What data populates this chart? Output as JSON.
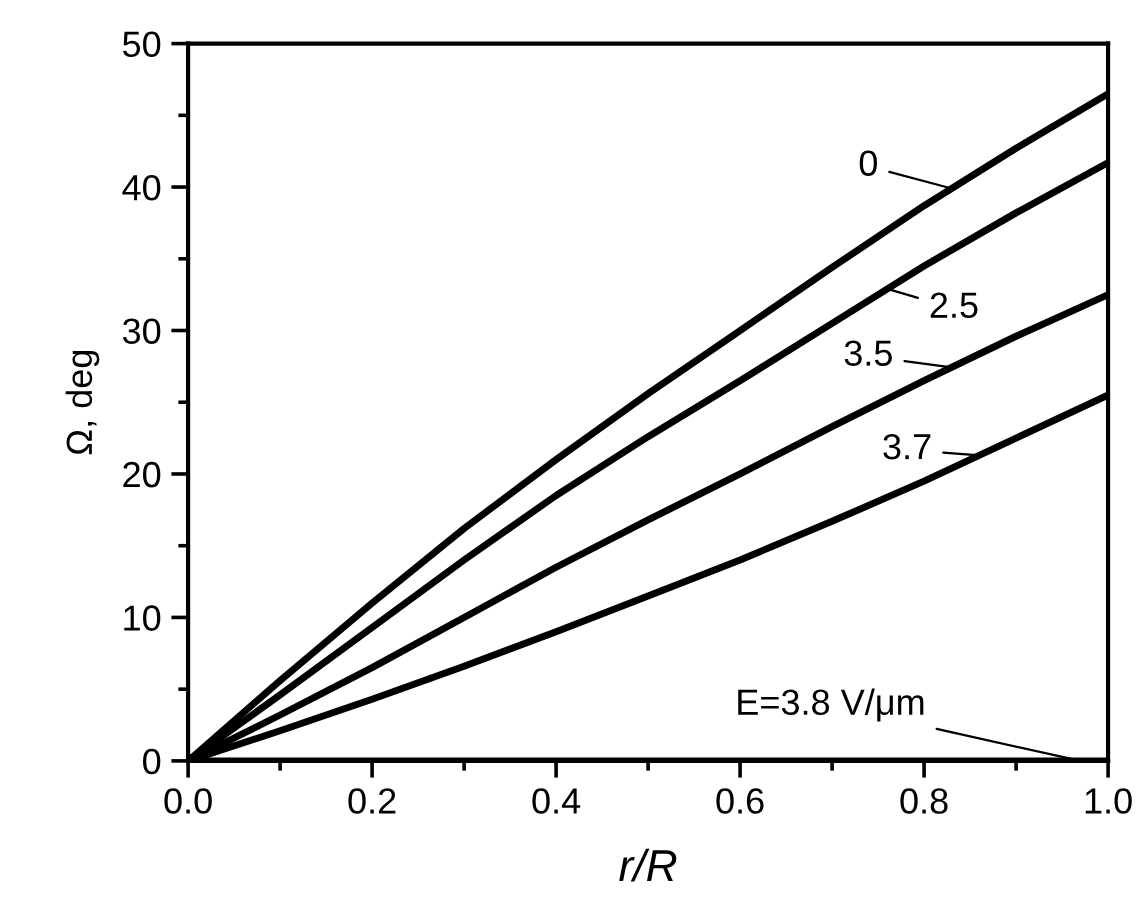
{
  "chart_data": {
    "type": "line",
    "xlabel": "r/R",
    "ylabel": "Ω, deg",
    "x": [
      0,
      0.1,
      0.2,
      0.3,
      0.4,
      0.5,
      0.6,
      0.7,
      0.8,
      0.9,
      1.0
    ],
    "series": [
      {
        "name": "0",
        "color": "#000000",
        "values": [
          0,
          5.6,
          11,
          16.2,
          21,
          25.6,
          30,
          34.4,
          38.7,
          42.7,
          46.5
        ]
      },
      {
        "name": "2.5",
        "color": "#000000",
        "values": [
          0,
          4.6,
          9.3,
          14,
          18.5,
          22.6,
          26.5,
          30.5,
          34.5,
          38.2,
          41.7
        ]
      },
      {
        "name": "3.5",
        "color": "#000000",
        "values": [
          0,
          3.2,
          6.5,
          10,
          13.5,
          16.8,
          20,
          23.3,
          26.5,
          29.6,
          32.5
        ]
      },
      {
        "name": "3.7",
        "color": "#000000",
        "values": [
          0,
          2.1,
          4.3,
          6.6,
          9,
          11.5,
          14,
          16.7,
          19.5,
          22.5,
          25.5
        ]
      },
      {
        "name": "E=3.8 V/μm",
        "color": "#000000",
        "values": [
          0,
          0,
          0,
          0,
          0,
          0,
          0,
          0,
          0,
          0,
          0
        ]
      }
    ],
    "xlim": [
      0,
      1.0
    ],
    "xticks": [
      {
        "value": 0,
        "label": "0.0"
      },
      0.2,
      0.4,
      0.6,
      0.8,
      {
        "value": 1.0,
        "label": "1.0"
      }
    ],
    "ylim": [
      0,
      50
    ],
    "yticks": [
      0,
      10,
      20,
      30,
      40,
      50
    ],
    "grid": false,
    "legend": "right",
    "marker": "none",
    "line_style": "solid"
  }
}
